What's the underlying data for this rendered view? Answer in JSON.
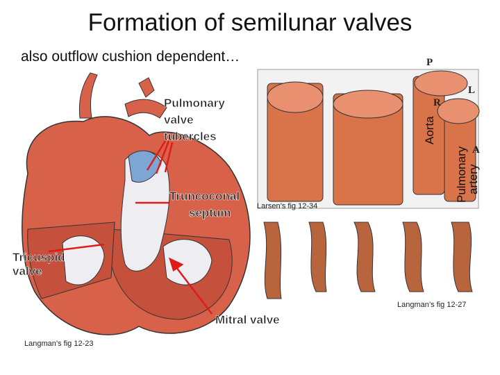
{
  "title": "Formation of semilunar valves",
  "subtitle": "also outflow cushion dependent…",
  "heart_figure": {
    "pulmonary_valve_tubercles": [
      "Pulmonary",
      "valve",
      "tubercles"
    ],
    "truncoconal_septum": [
      "Truncoconal",
      "septum"
    ],
    "tricuspid_valve": [
      "Tricuspid",
      "valve"
    ],
    "mitral_valve": "Mitral valve",
    "credit": "Langman’s fig 12-23"
  },
  "cross_section_figure": {
    "labels": {
      "P": "P",
      "L": "L",
      "R": "R",
      "A": "A"
    },
    "aorta": "Aorta",
    "pulmonary_artery": [
      "Pulmonary",
      "artery"
    ],
    "credit": "Larsen’s fig 12-34"
  },
  "cushion_figure": {
    "credit": "Langman’s fig 12-27"
  }
}
